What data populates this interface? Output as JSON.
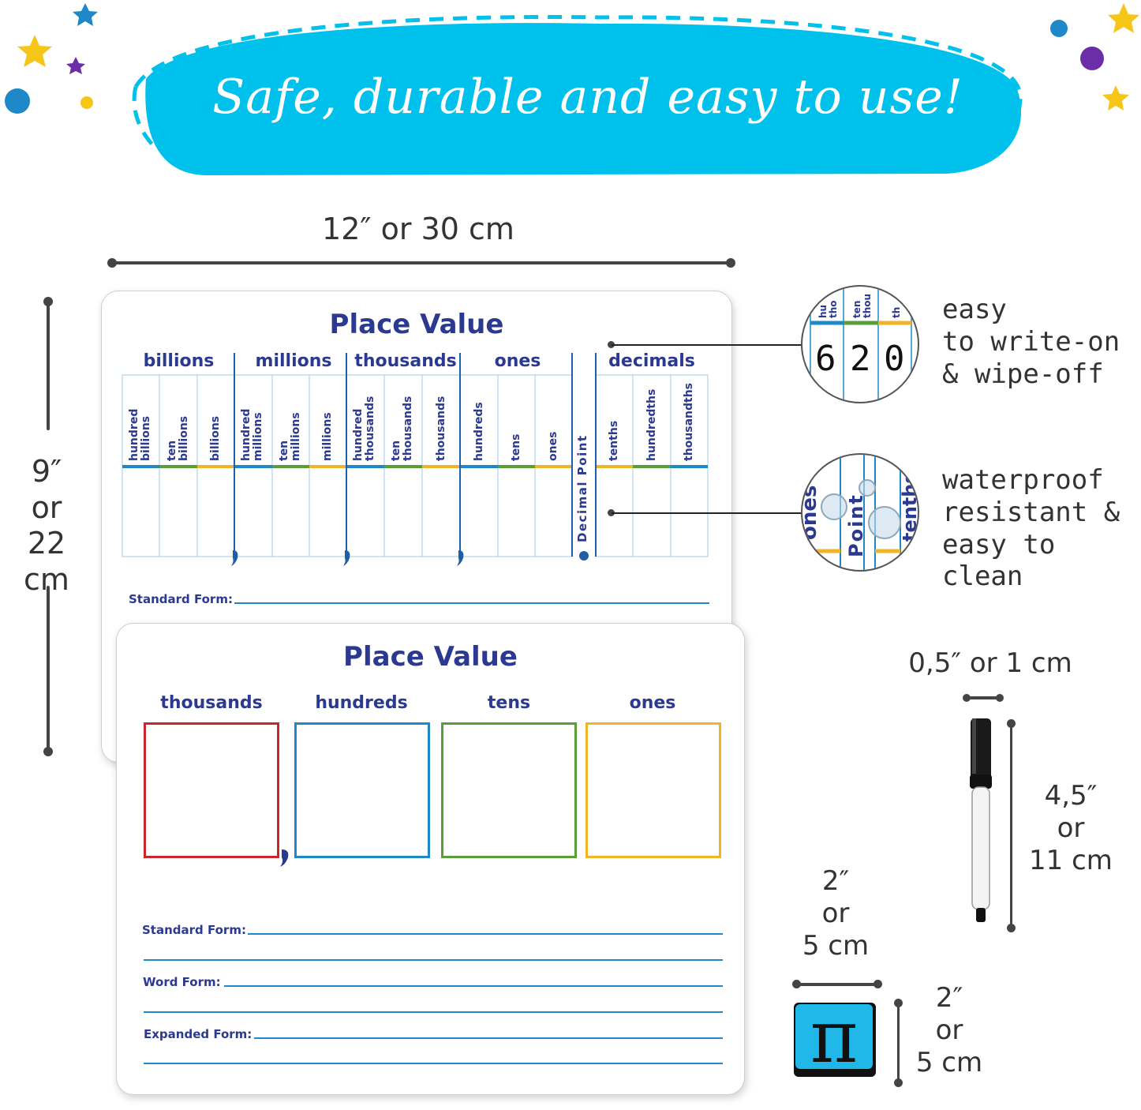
{
  "banner": {
    "title": "Safe, durable and easy to use!"
  },
  "dimensions": {
    "board_width": "12″ or 30 cm",
    "board_height": [
      "9″",
      "or",
      "22 cm"
    ],
    "marker_width": "0,5″ or 1 cm",
    "marker_length": [
      "4,5″",
      "or",
      "11 cm"
    ],
    "eraser_width": [
      "2″",
      "or",
      "5 cm"
    ],
    "eraser_height": [
      "2″",
      "or",
      "5 cm"
    ]
  },
  "board_top": {
    "title": "Place Value",
    "groups": [
      "billions",
      "millions",
      "thousands",
      "ones",
      "decimals"
    ],
    "columns": [
      "hundred\nbillions",
      "ten\nbillions",
      "billions",
      "hundred\nmillions",
      "ten\nmillions",
      "millions",
      "hundred\nthousands",
      "ten\nthousands",
      "thousands",
      "hundreds",
      "tens",
      "ones",
      "tenths",
      "hundredths",
      "thousandths"
    ],
    "decimal_point_label": "Decimal Point",
    "standard_form_label": "Standard Form:"
  },
  "board_bottom": {
    "title": "Place Value",
    "columns": [
      {
        "label": "thousands",
        "color": "#c8262e"
      },
      {
        "label": "hundreds",
        "color": "#1e88c8"
      },
      {
        "label": "tens",
        "color": "#5a9e3a"
      },
      {
        "label": "ones",
        "color": "#f0b429"
      }
    ],
    "forms": [
      "Standard Form:",
      "Word Form:",
      "Expanded Form:"
    ]
  },
  "features": {
    "write": [
      "easy",
      "to write-on",
      "& wipe-off"
    ],
    "water": [
      "waterproof",
      "resistant &",
      "easy to clean"
    ],
    "lens1_digits": [
      "6",
      "2",
      "0"
    ],
    "lens1_headers": [
      "hu\ntho",
      "ten\nthou",
      "th"
    ],
    "lens2_labels": [
      "ones",
      "Point",
      "tenths"
    ]
  },
  "eraser": {
    "symbol": "π"
  },
  "colors": {
    "banner": "#00c0ec",
    "navy": "#2b3990",
    "blue": "#1e88c8",
    "green": "#5a9e3a",
    "yellow": "#f0b429",
    "red": "#c8262e"
  }
}
